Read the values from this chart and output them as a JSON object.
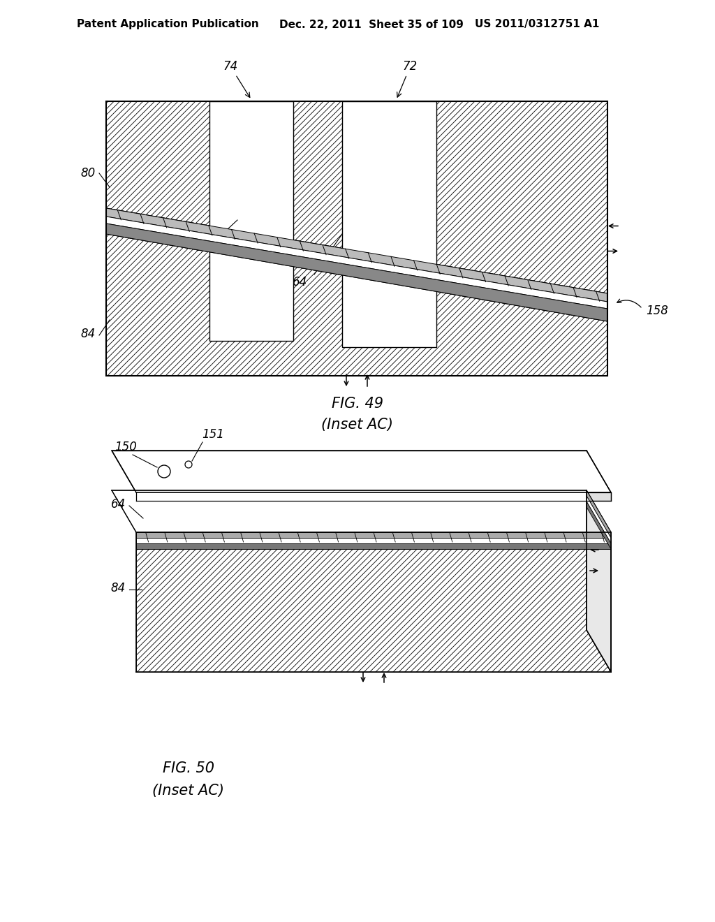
{
  "background_color": "#ffffff",
  "header_left": "Patent Application Publication",
  "header_mid": "Dec. 22, 2011  Sheet 35 of 109",
  "header_right": "US 2011/0312751 A1",
  "fig49_title": "FIG. 49",
  "fig49_subtitle": "(Inset AC)",
  "fig50_title": "FIG. 50",
  "fig50_subtitle": "(Inset AC)",
  "line_color": "#000000",
  "font_size_header": 11,
  "font_size_labels": 12,
  "font_size_fig": 15
}
